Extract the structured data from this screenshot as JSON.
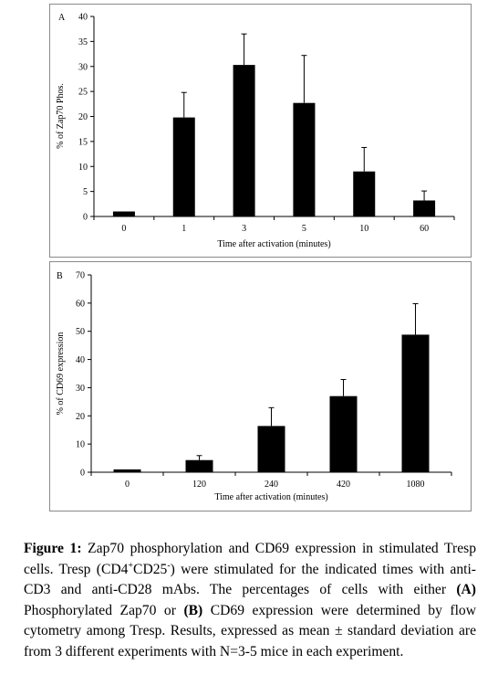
{
  "chart_data": [
    {
      "type": "bar",
      "panel_label": "A",
      "categories": [
        "0",
        "1",
        "3",
        "5",
        "10",
        "60"
      ],
      "values": [
        1.0,
        19.8,
        30.3,
        22.7,
        9.0,
        3.2
      ],
      "error": [
        0,
        5.0,
        6.2,
        9.5,
        4.8,
        1.9
      ],
      "xlabel": "Time after activation (minutes)",
      "ylabel": "% of Zap70 Phos.",
      "ylim": [
        0,
        40
      ],
      "yticks": [
        "0",
        "5",
        "10",
        "15",
        "20",
        "25",
        "30",
        "35",
        "40"
      ],
      "grid": false,
      "bar_color": "#000000"
    },
    {
      "type": "bar",
      "panel_label": "B",
      "categories": [
        "0",
        "120",
        "240",
        "420",
        "1080"
      ],
      "values": [
        1.0,
        4.3,
        16.4,
        27.0,
        48.8
      ],
      "error": [
        0,
        1.6,
        6.5,
        5.9,
        11.0
      ],
      "xlabel": "Time after activation  (minutes)",
      "ylabel": "% of CD69 expression",
      "ylim": [
        0,
        70
      ],
      "yticks": [
        "0",
        "10",
        "20",
        "30",
        "40",
        "50",
        "60",
        "70"
      ],
      "grid": false,
      "bar_color": "#000000"
    }
  ],
  "caption": {
    "label": "Figure 1:",
    "part1": " Zap70 phosphorylation and CD69 expression in stimulated Tresp cells. Tresp (CD4",
    "sup1": "+",
    "part2": "CD25",
    "sup2": "-",
    "part3": ") were stimulated for the indicated times with anti-CD3 and anti-CD28 mAbs. The percentages of cells with either ",
    "refA": "(A)",
    "part4": " Phosphorylated Zap70 or ",
    "refB": "(B)",
    "part5": " CD69 expression were determined by flow cytometry among Tresp. Results, expressed as mean ± standard deviation are from 3 different experiments with N=3-5 mice in each experiment."
  }
}
